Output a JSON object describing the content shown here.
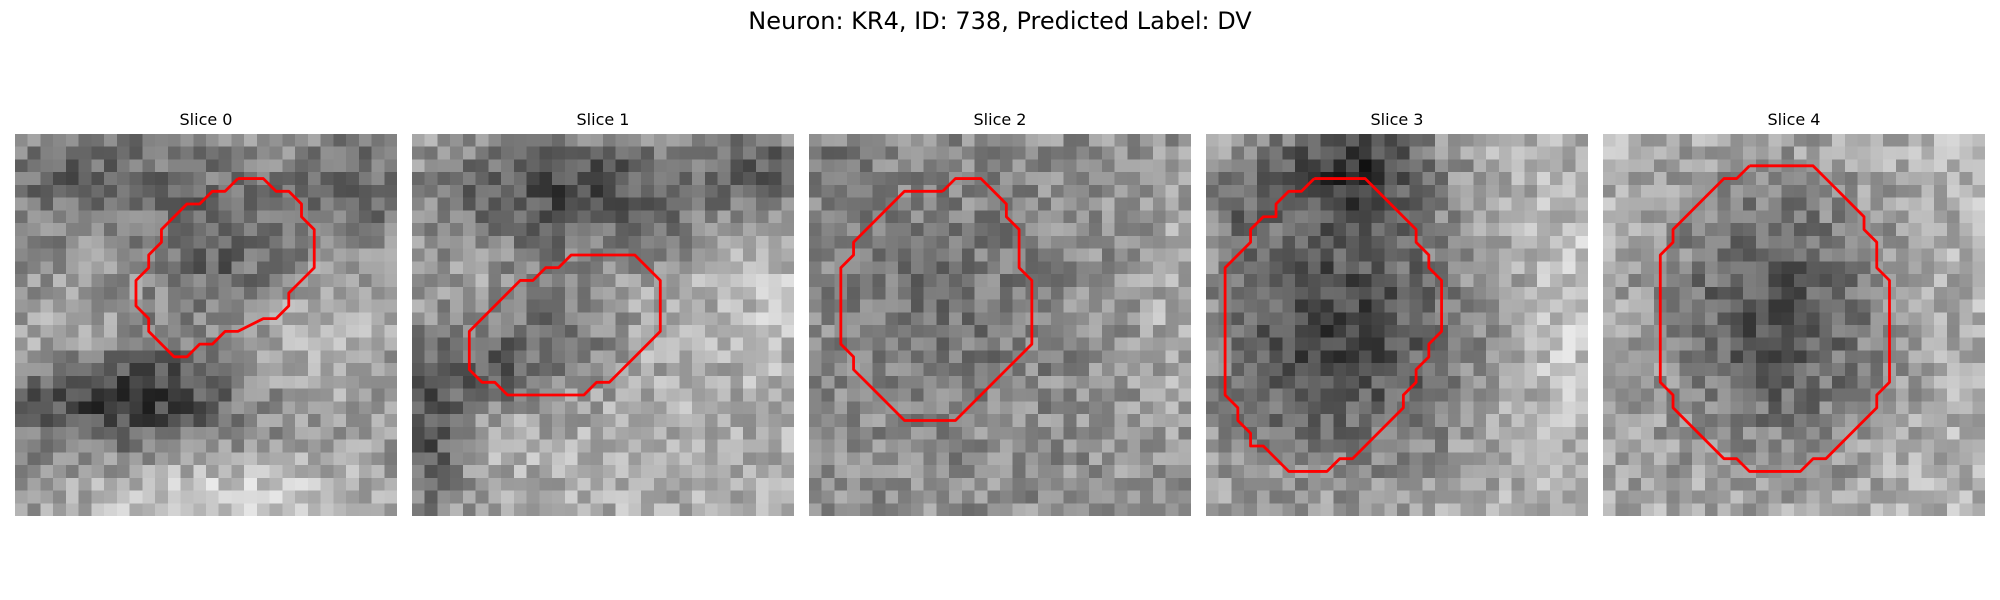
{
  "figure": {
    "title": "Neuron: KR4, ID: 738, Predicted Label: DV"
  },
  "colors": {
    "contour": "#ff0000",
    "colormap": "gray"
  },
  "panels": [
    {
      "title": "Slice 0",
      "contour": [
        [
          17,
          3
        ],
        [
          19,
          3
        ],
        [
          20,
          4
        ],
        [
          21,
          4
        ],
        [
          22,
          5
        ],
        [
          22,
          6
        ],
        [
          23,
          7
        ],
        [
          23,
          10
        ],
        [
          22,
          11
        ],
        [
          21,
          12
        ],
        [
          21,
          13
        ],
        [
          20,
          14
        ],
        [
          19,
          14
        ],
        [
          17,
          15
        ],
        [
          16,
          15
        ],
        [
          15,
          16
        ],
        [
          14,
          16
        ],
        [
          13,
          17
        ],
        [
          12,
          17
        ],
        [
          11,
          16
        ],
        [
          10,
          15
        ],
        [
          10,
          14
        ],
        [
          9,
          13
        ],
        [
          9,
          11
        ],
        [
          10,
          10
        ],
        [
          10,
          9
        ],
        [
          11,
          8
        ],
        [
          11,
          7
        ],
        [
          12,
          6
        ],
        [
          13,
          5
        ],
        [
          14,
          5
        ],
        [
          15,
          4
        ],
        [
          16,
          4
        ],
        [
          17,
          3
        ]
      ]
    },
    {
      "title": "Slice 1",
      "contour": [
        [
          13,
          9
        ],
        [
          15,
          9
        ],
        [
          16,
          9
        ],
        [
          17,
          9
        ],
        [
          18,
          10
        ],
        [
          19,
          11
        ],
        [
          19,
          13
        ],
        [
          19,
          15
        ],
        [
          18,
          16
        ],
        [
          17,
          17
        ],
        [
          16,
          18
        ],
        [
          15,
          19
        ],
        [
          14,
          19
        ],
        [
          13,
          20
        ],
        [
          12,
          20
        ],
        [
          11,
          20
        ],
        [
          10,
          20
        ],
        [
          9,
          20
        ],
        [
          8,
          20
        ],
        [
          7,
          20
        ],
        [
          6,
          19
        ],
        [
          5,
          19
        ],
        [
          4,
          18
        ],
        [
          4,
          17
        ],
        [
          4,
          15
        ],
        [
          5,
          14
        ],
        [
          6,
          13
        ],
        [
          7,
          12
        ],
        [
          8,
          11
        ],
        [
          9,
          11
        ],
        [
          10,
          10
        ],
        [
          11,
          10
        ],
        [
          12,
          9
        ],
        [
          13,
          9
        ]
      ]
    },
    {
      "title": "Slice 2",
      "contour": [
        [
          10,
          4
        ],
        [
          11,
          3
        ],
        [
          12,
          3
        ],
        [
          13,
          3
        ],
        [
          14,
          4
        ],
        [
          15,
          5
        ],
        [
          15,
          6
        ],
        [
          16,
          7
        ],
        [
          16,
          9
        ],
        [
          16,
          10
        ],
        [
          17,
          11
        ],
        [
          17,
          12
        ],
        [
          17,
          13
        ],
        [
          17,
          15
        ],
        [
          17,
          16
        ],
        [
          16,
          17
        ],
        [
          15,
          18
        ],
        [
          14,
          19
        ],
        [
          14,
          19
        ],
        [
          13,
          20
        ],
        [
          12,
          21
        ],
        [
          11,
          22
        ],
        [
          10,
          22
        ],
        [
          9,
          22
        ],
        [
          8,
          22
        ],
        [
          7,
          22
        ],
        [
          6,
          21
        ],
        [
          5,
          20
        ],
        [
          4,
          19
        ],
        [
          3,
          18
        ],
        [
          3,
          17
        ],
        [
          2,
          16
        ],
        [
          2,
          14
        ],
        [
          2,
          12
        ],
        [
          2,
          10
        ],
        [
          3,
          9
        ],
        [
          3,
          8
        ],
        [
          4,
          7
        ],
        [
          5,
          6
        ],
        [
          6,
          5
        ],
        [
          7,
          4
        ],
        [
          8,
          4
        ],
        [
          9,
          4
        ],
        [
          10,
          4
        ]
      ]
    },
    {
      "title": "Slice 3",
      "contour": [
        [
          8,
          3
        ],
        [
          10,
          3
        ],
        [
          11,
          3
        ],
        [
          12,
          3
        ],
        [
          13,
          4
        ],
        [
          14,
          5
        ],
        [
          15,
          6
        ],
        [
          16,
          7
        ],
        [
          16,
          8
        ],
        [
          17,
          9
        ],
        [
          17,
          10
        ],
        [
          18,
          11
        ],
        [
          18,
          13
        ],
        [
          18,
          15
        ],
        [
          17,
          16
        ],
        [
          17,
          17
        ],
        [
          16,
          18
        ],
        [
          16,
          19
        ],
        [
          15,
          20
        ],
        [
          15,
          21
        ],
        [
          14,
          22
        ],
        [
          13,
          23
        ],
        [
          12,
          24
        ],
        [
          11,
          25
        ],
        [
          10,
          25
        ],
        [
          9,
          26
        ],
        [
          8,
          26
        ],
        [
          7,
          26
        ],
        [
          6,
          26
        ],
        [
          5,
          25
        ],
        [
          4,
          24
        ],
        [
          3,
          24
        ],
        [
          3,
          23
        ],
        [
          2,
          22
        ],
        [
          2,
          21
        ],
        [
          1,
          20
        ],
        [
          1,
          19
        ],
        [
          1,
          17
        ],
        [
          1,
          15
        ],
        [
          1,
          13
        ],
        [
          1,
          11
        ],
        [
          1,
          10
        ],
        [
          2,
          9
        ],
        [
          3,
          8
        ],
        [
          3,
          7
        ],
        [
          4,
          6
        ],
        [
          5,
          6
        ],
        [
          5,
          5
        ],
        [
          6,
          4
        ],
        [
          7,
          4
        ],
        [
          8,
          3
        ]
      ]
    },
    {
      "title": "Slice 4",
      "contour": [
        [
          11,
          2
        ],
        [
          13,
          2
        ],
        [
          14,
          2
        ],
        [
          15,
          2
        ],
        [
          16,
          2
        ],
        [
          17,
          3
        ],
        [
          18,
          4
        ],
        [
          19,
          5
        ],
        [
          20,
          6
        ],
        [
          20,
          7
        ],
        [
          21,
          8
        ],
        [
          21,
          9
        ],
        [
          21,
          10
        ],
        [
          22,
          11
        ],
        [
          22,
          13
        ],
        [
          22,
          15
        ],
        [
          22,
          17
        ],
        [
          22,
          19
        ],
        [
          21,
          20
        ],
        [
          21,
          21
        ],
        [
          20,
          22
        ],
        [
          19,
          23
        ],
        [
          18,
          24
        ],
        [
          17,
          25
        ],
        [
          16,
          25
        ],
        [
          15,
          26
        ],
        [
          14,
          26
        ],
        [
          13,
          26
        ],
        [
          12,
          26
        ],
        [
          11,
          26
        ],
        [
          10,
          25
        ],
        [
          9,
          25
        ],
        [
          8,
          24
        ],
        [
          7,
          23
        ],
        [
          6,
          22
        ],
        [
          5,
          21
        ],
        [
          5,
          20
        ],
        [
          4,
          19
        ],
        [
          4,
          18
        ],
        [
          4,
          16
        ],
        [
          4,
          14
        ],
        [
          4,
          12
        ],
        [
          4,
          10
        ],
        [
          4,
          9
        ],
        [
          5,
          8
        ],
        [
          5,
          7
        ],
        [
          6,
          6
        ],
        [
          7,
          5
        ],
        [
          8,
          4
        ],
        [
          9,
          3
        ],
        [
          10,
          3
        ],
        [
          11,
          2
        ]
      ]
    }
  ]
}
